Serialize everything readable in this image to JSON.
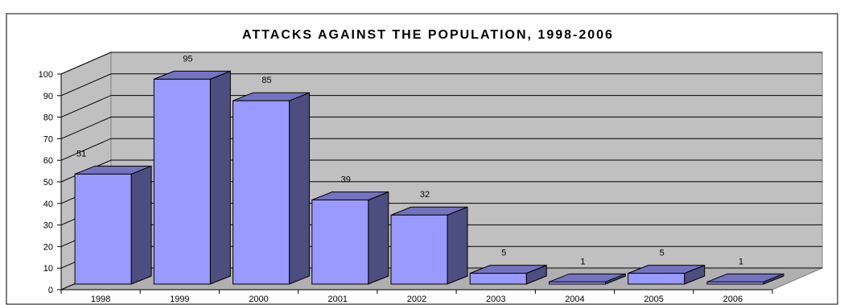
{
  "chart_data": {
    "type": "bar",
    "title": "ATTACKS AGAINST THE POPULATION, 1998-2006",
    "categories": [
      "1998",
      "1999",
      "2000",
      "2001",
      "2002",
      "2003",
      "2004",
      "2005",
      "2006"
    ],
    "values": [
      51,
      95,
      85,
      39,
      32,
      5,
      1,
      5,
      1
    ],
    "data_labels": [
      "51",
      "95",
      "85",
      "39",
      "32",
      "5",
      "1",
      "5",
      "1"
    ],
    "ylim": [
      0,
      100
    ],
    "yticks": [
      0,
      10,
      20,
      30,
      40,
      50,
      60,
      70,
      80,
      90,
      100
    ],
    "grid": true,
    "legend": "none",
    "colors": {
      "bar_front": "#9999ff",
      "bar_side": "#4d4d80",
      "bar_top": "#7373bf",
      "wall": "#c0c0c0",
      "floor": "#b0b0b0"
    }
  }
}
